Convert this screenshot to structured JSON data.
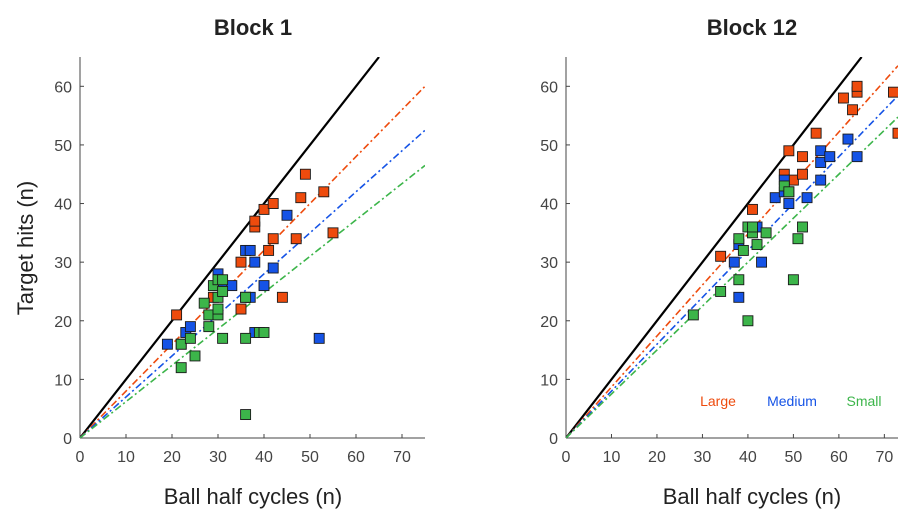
{
  "colors": {
    "Large": "#ee4b0d",
    "Medium": "#1553e6",
    "Small": "#3cb54a",
    "identity": "#000000"
  },
  "ylabel": "Target hits (n)",
  "chart_data": [
    {
      "type": "scatter",
      "title": "Block 1",
      "xlabel": "Ball half cycles (n)",
      "ylabel": "Target hits (n)",
      "xlim": [
        0,
        75
      ],
      "ylim": [
        0,
        65
      ],
      "xticks": [
        0,
        10,
        20,
        30,
        40,
        50,
        60,
        70
      ],
      "yticks": [
        0,
        10,
        20,
        30,
        40,
        50,
        60
      ],
      "identity_line": true,
      "legend": null,
      "series": [
        {
          "name": "Large",
          "slope": 0.8,
          "points": [
            [
              21,
              21
            ],
            [
              29,
              24
            ],
            [
              35,
              22
            ],
            [
              35,
              30
            ],
            [
              38,
              36
            ],
            [
              38,
              37
            ],
            [
              40,
              39
            ],
            [
              41,
              32
            ],
            [
              42,
              34
            ],
            [
              42,
              40
            ],
            [
              44,
              24
            ],
            [
              47,
              34
            ],
            [
              48,
              41
            ],
            [
              49,
              45
            ],
            [
              53,
              42
            ],
            [
              55,
              35
            ]
          ]
        },
        {
          "name": "Medium",
          "slope": 0.7,
          "points": [
            [
              19,
              16
            ],
            [
              22,
              16
            ],
            [
              23,
              18
            ],
            [
              24,
              19
            ],
            [
              30,
              28
            ],
            [
              31,
              26
            ],
            [
              33,
              26
            ],
            [
              36,
              24
            ],
            [
              36,
              32
            ],
            [
              37,
              24
            ],
            [
              37,
              32
            ],
            [
              38,
              18
            ],
            [
              38,
              30
            ],
            [
              40,
              26
            ],
            [
              42,
              29
            ],
            [
              45,
              38
            ],
            [
              52,
              17
            ]
          ]
        },
        {
          "name": "Small",
          "slope": 0.62,
          "points": [
            [
              22,
              12
            ],
            [
              22,
              16
            ],
            [
              24,
              17
            ],
            [
              25,
              14
            ],
            [
              27,
              23
            ],
            [
              28,
              19
            ],
            [
              28,
              21
            ],
            [
              29,
              26
            ],
            [
              30,
              21
            ],
            [
              30,
              22
            ],
            [
              30,
              24
            ],
            [
              30,
              27
            ],
            [
              31,
              25
            ],
            [
              31,
              17
            ],
            [
              31,
              27
            ],
            [
              36,
              4
            ],
            [
              36,
              17
            ],
            [
              36,
              24
            ],
            [
              39,
              18
            ],
            [
              40,
              18
            ]
          ]
        }
      ]
    },
    {
      "type": "scatter",
      "title": "Block 12",
      "xlabel": "Ball half cycles (n)",
      "ylabel": "",
      "xlim": [
        0,
        73
      ],
      "ylim": [
        0,
        65
      ],
      "xticks": [
        0,
        10,
        20,
        30,
        40,
        50,
        60,
        70
      ],
      "yticks": [
        0,
        10,
        20,
        30,
        40,
        50,
        60
      ],
      "identity_line": true,
      "legend": [
        "Large",
        "Medium",
        "Small"
      ],
      "series": [
        {
          "name": "Large",
          "slope": 0.87,
          "points": [
            [
              34,
              31
            ],
            [
              41,
              39
            ],
            [
              48,
              45
            ],
            [
              49,
              49
            ],
            [
              50,
              44
            ],
            [
              52,
              45
            ],
            [
              52,
              48
            ],
            [
              55,
              52
            ],
            [
              61,
              58
            ],
            [
              63,
              56
            ],
            [
              64,
              59
            ],
            [
              64,
              60
            ],
            [
              72,
              59
            ],
            [
              73,
              52
            ]
          ]
        },
        {
          "name": "Medium",
          "slope": 0.8,
          "points": [
            [
              37,
              30
            ],
            [
              38,
              24
            ],
            [
              38,
              33
            ],
            [
              42,
              36
            ],
            [
              43,
              30
            ],
            [
              46,
              41
            ],
            [
              48,
              42
            ],
            [
              48,
              44
            ],
            [
              49,
              40
            ],
            [
              49,
              42
            ],
            [
              53,
              41
            ],
            [
              56,
              44
            ],
            [
              56,
              47
            ],
            [
              56,
              49
            ],
            [
              58,
              48
            ],
            [
              62,
              51
            ],
            [
              64,
              48
            ]
          ]
        },
        {
          "name": "Small",
          "slope": 0.75,
          "points": [
            [
              28,
              21
            ],
            [
              34,
              25
            ],
            [
              38,
              27
            ],
            [
              38,
              34
            ],
            [
              39,
              32
            ],
            [
              40,
              20
            ],
            [
              40,
              36
            ],
            [
              41,
              35
            ],
            [
              41,
              36
            ],
            [
              42,
              33
            ],
            [
              44,
              35
            ],
            [
              48,
              43
            ],
            [
              49,
              42
            ],
            [
              50,
              27
            ],
            [
              51,
              34
            ],
            [
              52,
              36
            ]
          ]
        }
      ]
    }
  ]
}
